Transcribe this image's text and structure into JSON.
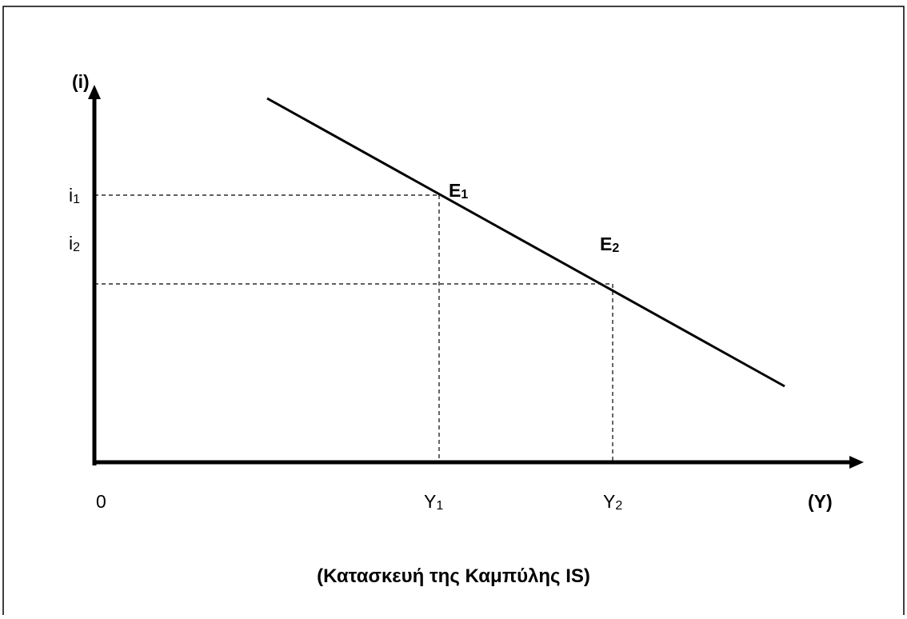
{
  "axes": {
    "y_label": "(i)",
    "x_label": "(Y)",
    "origin": "0"
  },
  "y_levels": [
    {
      "base": "i",
      "sub": "1"
    },
    {
      "base": "i",
      "sub": "2"
    }
  ],
  "x_levels": [
    {
      "base": "Y",
      "sub": "1"
    },
    {
      "base": "Y",
      "sub": "2"
    }
  ],
  "points": [
    {
      "base": "E",
      "sub": "1"
    },
    {
      "base": "E",
      "sub": "2"
    }
  ],
  "caption": "(Κατασκευή της Καμπύλης IS)"
}
